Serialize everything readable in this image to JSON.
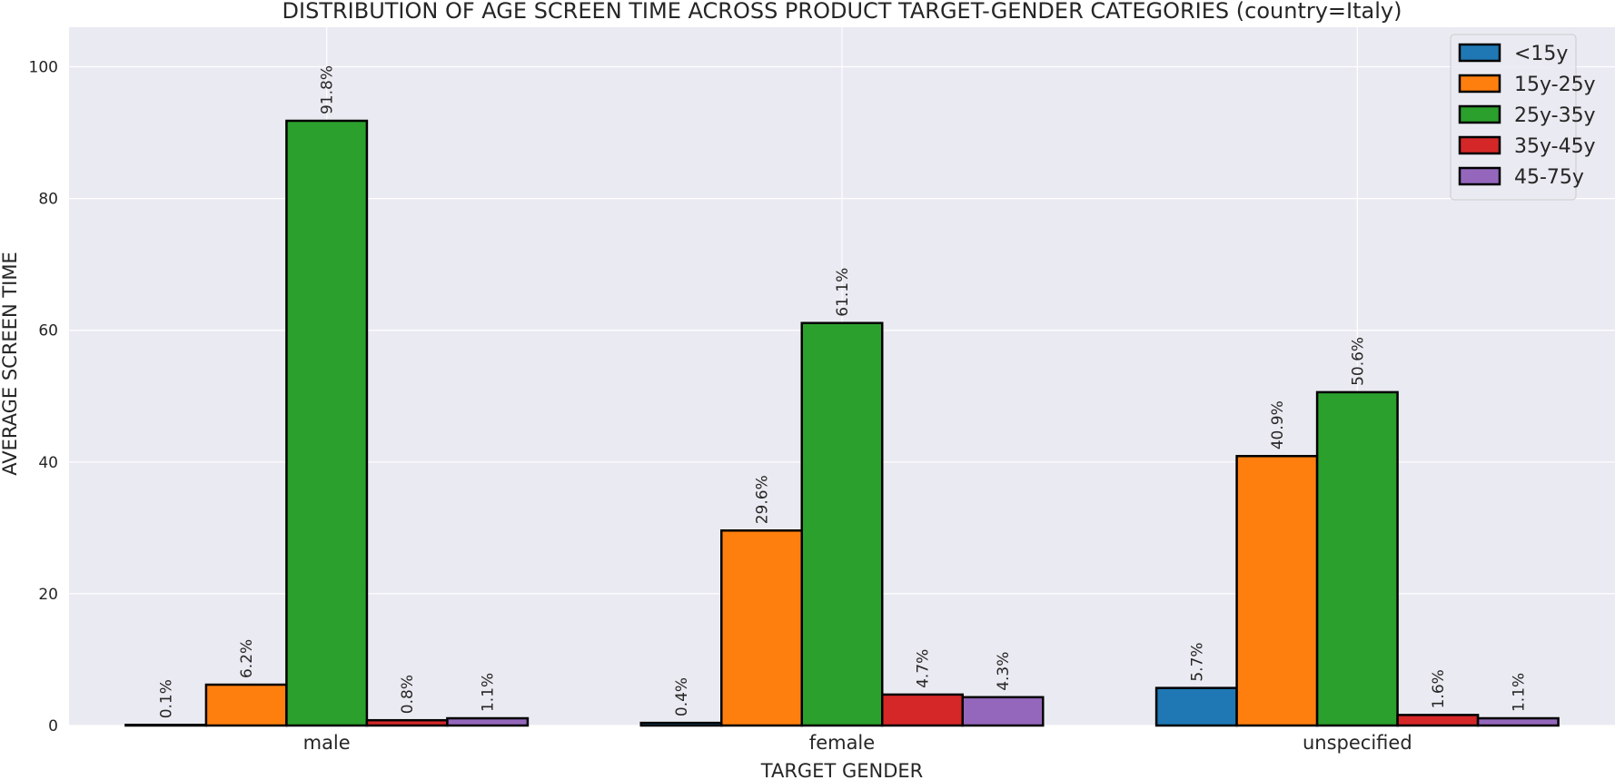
{
  "chart_data": {
    "type": "bar",
    "title": "DISTRIBUTION OF AGE SCREEN TIME ACROSS PRODUCT TARGET-GENDER CATEGORIES (country=Italy)",
    "xlabel": "TARGET GENDER",
    "ylabel": "AVERAGE SCREEN TIME",
    "categories": [
      "male",
      "female",
      "unspecified"
    ],
    "ylim": [
      0,
      106
    ],
    "yticks": [
      0,
      20,
      40,
      60,
      80,
      100
    ],
    "grid": true,
    "legend_position": "top-right",
    "series": [
      {
        "name": "<15y",
        "color": "#1f77b4",
        "values": [
          0.1,
          0.4,
          5.7
        ],
        "labels": [
          "0.1%",
          "0.4%",
          "5.7%"
        ]
      },
      {
        "name": "15y-25y",
        "color": "#ff7f0e",
        "values": [
          6.2,
          29.6,
          40.9
        ],
        "labels": [
          "6.2%",
          "29.6%",
          "40.9%"
        ]
      },
      {
        "name": "25y-35y",
        "color": "#2ca02c",
        "values": [
          91.8,
          61.1,
          50.6
        ],
        "labels": [
          "91.8%",
          "61.1%",
          "50.6%"
        ]
      },
      {
        "name": "35y-45y",
        "color": "#d62728",
        "values": [
          0.8,
          4.7,
          1.6
        ],
        "labels": [
          "0.8%",
          "4.7%",
          "1.6%"
        ]
      },
      {
        "name": "45-75y",
        "color": "#9467bd",
        "values": [
          1.1,
          4.3,
          1.1
        ],
        "labels": [
          "1.1%",
          "4.3%",
          "1.1%"
        ]
      }
    ]
  }
}
